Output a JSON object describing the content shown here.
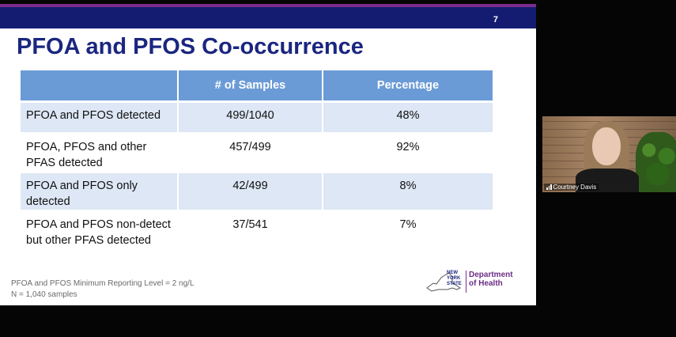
{
  "slide": {
    "number": "7",
    "title": "PFOA and PFOS Co-occurrence",
    "table": {
      "headers": [
        "",
        "# of Samples",
        "Percentage"
      ],
      "rows": [
        {
          "label": "PFOA and PFOS detected",
          "samples": "499/1040",
          "percentage": "48%"
        },
        {
          "label": "PFOA, PFOS and other PFAS detected",
          "samples": "457/499",
          "percentage": "92%"
        },
        {
          "label": "PFOA and PFOS only detected",
          "samples": "42/499",
          "percentage": "8%"
        },
        {
          "label": "PFOA and PFOS non-detect but other PFAS detected",
          "samples": "37/541",
          "percentage": "7%"
        }
      ]
    },
    "footnotes": [
      "PFOA and PFOS Minimum Reporting Level = 2 ng/L",
      "N = 1,040 samples"
    ],
    "logo": {
      "state_lines": [
        "NEW",
        "YORK",
        "STATE"
      ],
      "dept_lines": [
        "Department",
        "of Health"
      ]
    }
  },
  "participant": {
    "name": "Courtney Davis"
  },
  "colors": {
    "header_bar": "#141c72",
    "accent_purple": "#7b2d8e",
    "table_header": "#6b9bd6",
    "row_shade": "#dde7f5"
  }
}
